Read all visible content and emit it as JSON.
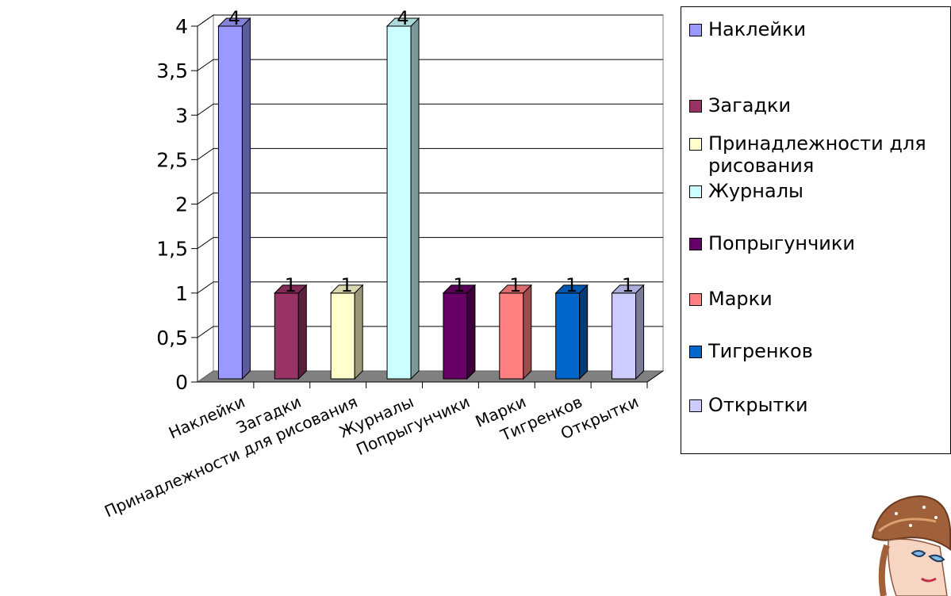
{
  "chart_data": {
    "type": "bar",
    "title": "",
    "xlabel": "",
    "ylabel": "",
    "ylim": [
      0,
      4
    ],
    "yticks": [
      "0",
      "0,5",
      "1",
      "1,5",
      "2",
      "2,5",
      "3",
      "3,5",
      "4"
    ],
    "categories": [
      "Наклейки",
      "Загадки",
      "Принадлежности для рисования",
      "Журналы",
      "Попрыгунчики",
      "Марки",
      "Тигренков",
      "Открытки"
    ],
    "values": [
      4,
      1,
      1,
      4,
      1,
      1,
      1,
      1
    ],
    "data_labels": [
      "4",
      "1",
      "1",
      "4",
      "1",
      "1",
      "1",
      "1"
    ],
    "colors": [
      "#9999ff",
      "#993366",
      "#ffffcc",
      "#ccffff",
      "#660066",
      "#ff8080",
      "#0066cc",
      "#ccccff"
    ],
    "grid": true,
    "style": "3d-column",
    "legend_position": "right"
  },
  "legend": {
    "items": [
      {
        "label": "Наклейки",
        "color": "#9999ff"
      },
      {
        "label": "Загадки",
        "color": "#993366"
      },
      {
        "label": "Принадлежности для рисования",
        "color": "#ffffcc"
      },
      {
        "label": "Журналы",
        "color": "#ccffff"
      },
      {
        "label": "Попрыгунчики",
        "color": "#660066"
      },
      {
        "label": "Марки",
        "color": "#ff8080"
      },
      {
        "label": "Тигренков",
        "color": "#0066cc"
      },
      {
        "label": "Открытки",
        "color": "#ccccff"
      }
    ]
  },
  "decoration": {
    "icon": "cartoon-girl-with-cap-illustration"
  }
}
